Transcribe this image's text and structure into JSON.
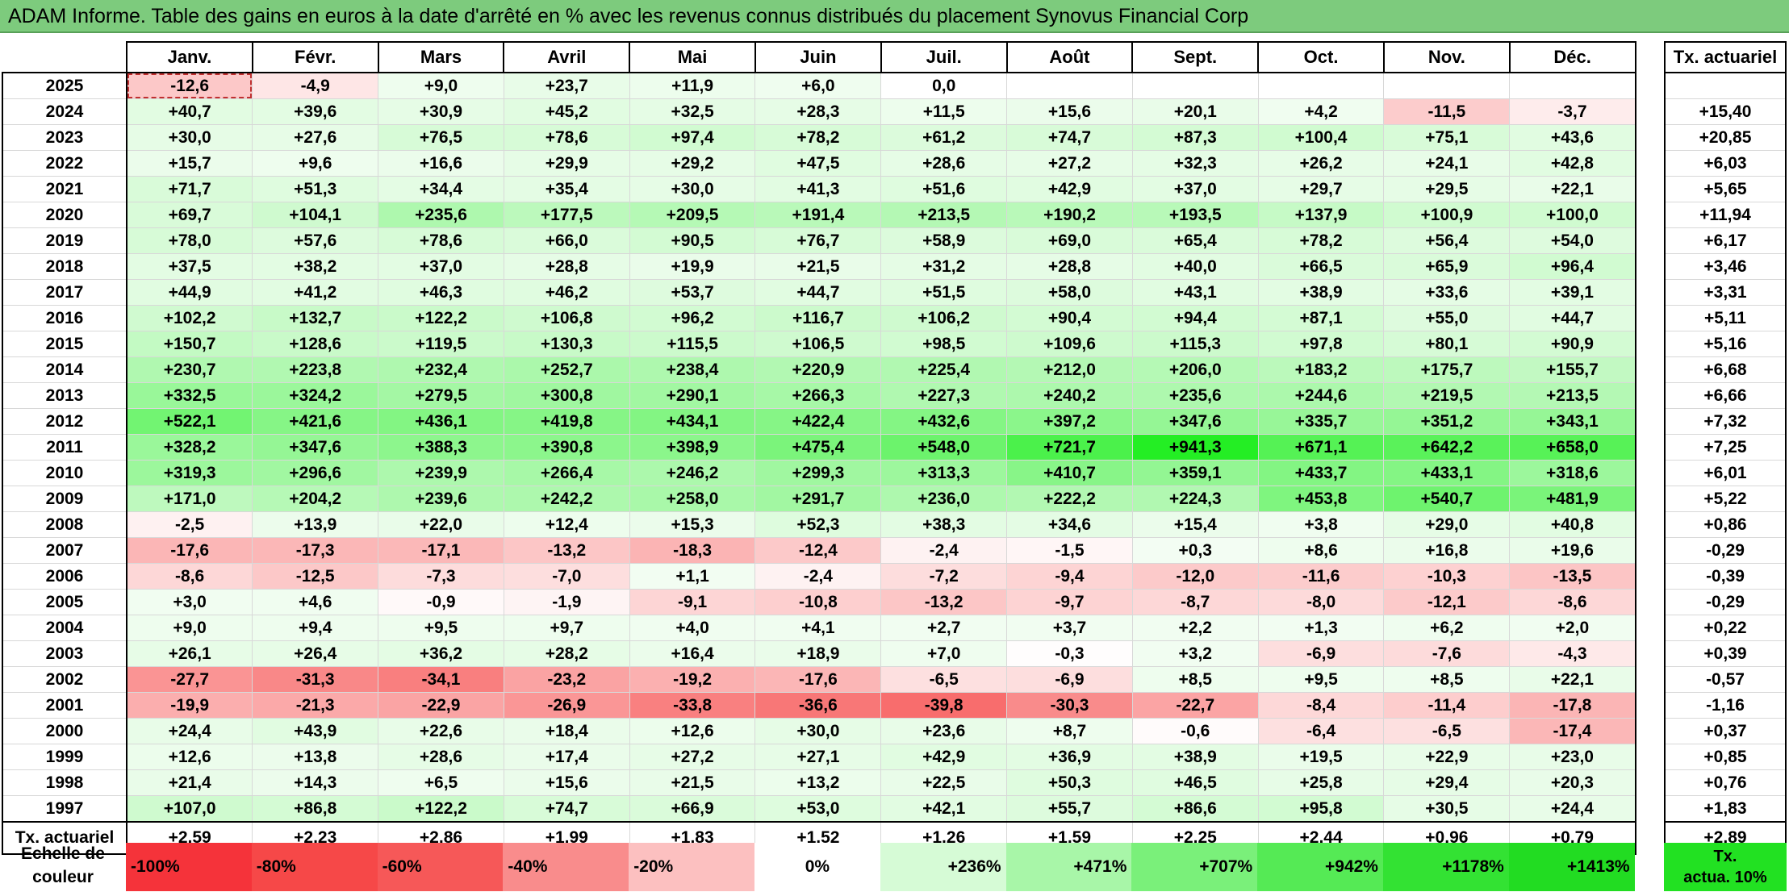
{
  "title": "ADAM Informe. Table des gains en euros à la date d'arrêté en % avec les revenus connus distribués du placement Synovus Financial Corp",
  "months": [
    "Janv.",
    "Févr.",
    "Mars",
    "Avril",
    "Mai",
    "Juin",
    "Juil.",
    "Août",
    "Sept.",
    "Oct.",
    "Nov.",
    "Déc."
  ],
  "rate_header": "Tx. actuariel",
  "rows": [
    {
      "year": "2025",
      "values": [
        "-12,6",
        "-4,9",
        "+9,0",
        "+23,7",
        "+11,9",
        "+6,0",
        "0,0",
        "",
        "",
        "",
        "",
        ""
      ],
      "rate": ""
    },
    {
      "year": "2024",
      "values": [
        "+40,7",
        "+39,6",
        "+30,9",
        "+45,2",
        "+32,5",
        "+28,3",
        "+11,5",
        "+15,6",
        "+20,1",
        "+4,2",
        "-11,5",
        "-3,7"
      ],
      "rate": "+15,40"
    },
    {
      "year": "2023",
      "values": [
        "+30,0",
        "+27,6",
        "+76,5",
        "+78,6",
        "+97,4",
        "+78,2",
        "+61,2",
        "+74,7",
        "+87,3",
        "+100,4",
        "+75,1",
        "+43,6"
      ],
      "rate": "+20,85"
    },
    {
      "year": "2022",
      "values": [
        "+15,7",
        "+9,6",
        "+16,6",
        "+29,9",
        "+29,2",
        "+47,5",
        "+28,6",
        "+27,2",
        "+32,3",
        "+26,2",
        "+24,1",
        "+42,8"
      ],
      "rate": "+6,03"
    },
    {
      "year": "2021",
      "values": [
        "+71,7",
        "+51,3",
        "+34,4",
        "+35,4",
        "+30,0",
        "+41,3",
        "+51,6",
        "+42,9",
        "+37,0",
        "+29,7",
        "+29,5",
        "+22,1"
      ],
      "rate": "+5,65"
    },
    {
      "year": "2020",
      "values": [
        "+69,7",
        "+104,1",
        "+235,6",
        "+177,5",
        "+209,5",
        "+191,4",
        "+213,5",
        "+190,2",
        "+193,5",
        "+137,9",
        "+100,9",
        "+100,0"
      ],
      "rate": "+11,94"
    },
    {
      "year": "2019",
      "values": [
        "+78,0",
        "+57,6",
        "+78,6",
        "+66,0",
        "+90,5",
        "+76,7",
        "+58,9",
        "+69,0",
        "+65,4",
        "+78,2",
        "+56,4",
        "+54,0"
      ],
      "rate": "+6,17"
    },
    {
      "year": "2018",
      "values": [
        "+37,5",
        "+38,2",
        "+37,0",
        "+28,8",
        "+19,9",
        "+21,5",
        "+31,2",
        "+28,8",
        "+40,0",
        "+66,5",
        "+65,9",
        "+96,4"
      ],
      "rate": "+3,46"
    },
    {
      "year": "2017",
      "values": [
        "+44,9",
        "+41,2",
        "+46,3",
        "+46,2",
        "+53,7",
        "+44,7",
        "+51,5",
        "+58,0",
        "+43,1",
        "+38,9",
        "+33,6",
        "+39,1"
      ],
      "rate": "+3,31"
    },
    {
      "year": "2016",
      "values": [
        "+102,2",
        "+132,7",
        "+122,2",
        "+106,8",
        "+96,2",
        "+116,7",
        "+106,2",
        "+90,4",
        "+94,4",
        "+87,1",
        "+55,0",
        "+44,7"
      ],
      "rate": "+5,11"
    },
    {
      "year": "2015",
      "values": [
        "+150,7",
        "+128,6",
        "+119,5",
        "+130,3",
        "+115,5",
        "+106,5",
        "+98,5",
        "+109,6",
        "+115,3",
        "+97,8",
        "+80,1",
        "+90,9"
      ],
      "rate": "+5,16"
    },
    {
      "year": "2014",
      "values": [
        "+230,7",
        "+223,8",
        "+232,4",
        "+252,7",
        "+238,4",
        "+220,9",
        "+225,4",
        "+212,0",
        "+206,0",
        "+183,2",
        "+175,7",
        "+155,7"
      ],
      "rate": "+6,68"
    },
    {
      "year": "2013",
      "values": [
        "+332,5",
        "+324,2",
        "+279,5",
        "+300,8",
        "+290,1",
        "+266,3",
        "+227,3",
        "+240,2",
        "+235,6",
        "+244,6",
        "+219,5",
        "+213,5"
      ],
      "rate": "+6,66"
    },
    {
      "year": "2012",
      "values": [
        "+522,1",
        "+421,6",
        "+436,1",
        "+419,8",
        "+434,1",
        "+422,4",
        "+432,6",
        "+397,2",
        "+347,6",
        "+335,7",
        "+351,2",
        "+343,1"
      ],
      "rate": "+7,32"
    },
    {
      "year": "2011",
      "values": [
        "+328,2",
        "+347,6",
        "+388,3",
        "+390,8",
        "+398,9",
        "+475,4",
        "+548,0",
        "+721,7",
        "+941,3",
        "+671,1",
        "+642,2",
        "+658,0"
      ],
      "rate": "+7,25"
    },
    {
      "year": "2010",
      "values": [
        "+319,3",
        "+296,6",
        "+239,9",
        "+266,4",
        "+246,2",
        "+299,3",
        "+313,3",
        "+410,7",
        "+359,1",
        "+433,7",
        "+433,1",
        "+318,6"
      ],
      "rate": "+6,01"
    },
    {
      "year": "2009",
      "values": [
        "+171,0",
        "+204,2",
        "+239,6",
        "+242,2",
        "+258,0",
        "+291,7",
        "+236,0",
        "+222,2",
        "+224,3",
        "+453,8",
        "+540,7",
        "+481,9"
      ],
      "rate": "+5,22"
    },
    {
      "year": "2008",
      "values": [
        "-2,5",
        "+13,9",
        "+22,0",
        "+12,4",
        "+15,3",
        "+52,3",
        "+38,3",
        "+34,6",
        "+15,4",
        "+3,8",
        "+29,0",
        "+40,8"
      ],
      "rate": "+0,86"
    },
    {
      "year": "2007",
      "values": [
        "-17,6",
        "-17,3",
        "-17,1",
        "-13,2",
        "-18,3",
        "-12,4",
        "-2,4",
        "-1,5",
        "+0,3",
        "+8,6",
        "+16,8",
        "+19,6"
      ],
      "rate": "-0,29"
    },
    {
      "year": "2006",
      "values": [
        "-8,6",
        "-12,5",
        "-7,3",
        "-7,0",
        "+1,1",
        "-2,4",
        "-7,2",
        "-9,4",
        "-12,0",
        "-11,6",
        "-10,3",
        "-13,5"
      ],
      "rate": "-0,39"
    },
    {
      "year": "2005",
      "values": [
        "+3,0",
        "+4,6",
        "-0,9",
        "-1,9",
        "-9,1",
        "-10,8",
        "-13,2",
        "-9,7",
        "-8,7",
        "-8,0",
        "-12,1",
        "-8,6"
      ],
      "rate": "-0,29"
    },
    {
      "year": "2004",
      "values": [
        "+9,0",
        "+9,4",
        "+9,5",
        "+9,7",
        "+4,0",
        "+4,1",
        "+2,7",
        "+3,7",
        "+2,2",
        "+1,3",
        "+6,2",
        "+2,0"
      ],
      "rate": "+0,22"
    },
    {
      "year": "2003",
      "values": [
        "+26,1",
        "+26,4",
        "+36,2",
        "+28,2",
        "+16,4",
        "+18,9",
        "+7,0",
        "-0,3",
        "+3,2",
        "-6,9",
        "-7,6",
        "-4,3"
      ],
      "rate": "+0,39"
    },
    {
      "year": "2002",
      "values": [
        "-27,7",
        "-31,3",
        "-34,1",
        "-23,2",
        "-19,2",
        "-17,6",
        "-6,5",
        "-6,9",
        "+8,5",
        "+9,5",
        "+8,5",
        "+22,1"
      ],
      "rate": "-0,57"
    },
    {
      "year": "2001",
      "values": [
        "-19,9",
        "-21,3",
        "-22,9",
        "-26,9",
        "-33,8",
        "-36,6",
        "-39,8",
        "-30,3",
        "-22,7",
        "-8,4",
        "-11,4",
        "-17,8"
      ],
      "rate": "-1,16"
    },
    {
      "year": "2000",
      "values": [
        "+24,4",
        "+43,9",
        "+22,6",
        "+18,4",
        "+12,6",
        "+30,0",
        "+23,6",
        "+8,7",
        "-0,6",
        "-6,4",
        "-6,5",
        "-17,4"
      ],
      "rate": "+0,37"
    },
    {
      "year": "1999",
      "values": [
        "+12,6",
        "+13,8",
        "+28,6",
        "+17,4",
        "+27,2",
        "+27,1",
        "+42,9",
        "+36,9",
        "+38,9",
        "+19,5",
        "+22,9",
        "+23,0"
      ],
      "rate": "+0,85"
    },
    {
      "year": "1998",
      "values": [
        "+21,4",
        "+14,3",
        "+6,5",
        "+15,6",
        "+21,5",
        "+13,2",
        "+22,5",
        "+50,3",
        "+46,5",
        "+25,8",
        "+29,4",
        "+20,3"
      ],
      "rate": "+0,76"
    },
    {
      "year": "1997",
      "values": [
        "+107,0",
        "+86,8",
        "+122,2",
        "+74,7",
        "+66,9",
        "+53,0",
        "+42,1",
        "+55,7",
        "+86,6",
        "+95,8",
        "+30,5",
        "+24,4"
      ],
      "rate": "+1,83"
    }
  ],
  "summary": {
    "label": "Tx. actuariel",
    "values": [
      "+2,59",
      "+2,23",
      "+2,86",
      "+1,99",
      "+1,83",
      "+1,52",
      "+1,26",
      "+1,59",
      "+2,25",
      "+2,44",
      "+0,96",
      "+0,79"
    ],
    "rate": "+2,89"
  },
  "scale": {
    "label_line1": "Echelle de",
    "label_line2": "couleur",
    "items": [
      {
        "label": "-100%",
        "color": "#f5333a"
      },
      {
        "label": "-80%",
        "color": "#f64848"
      },
      {
        "label": "-60%",
        "color": "#f65858"
      },
      {
        "label": "-40%",
        "color": "#f98c8c"
      },
      {
        "label": "-20%",
        "color": "#fcc0c0"
      },
      {
        "label": "0%",
        "color": "#ffffff"
      },
      {
        "label": "+236%",
        "color": "#d6fbd6"
      },
      {
        "label": "+471%",
        "color": "#a8f6a8"
      },
      {
        "label": "+707%",
        "color": "#7af07a"
      },
      {
        "label": "+942%",
        "color": "#55ea55"
      },
      {
        "label": "+1178%",
        "color": "#33e233"
      },
      {
        "label": "+1413%",
        "color": "#22dc22"
      }
    ],
    "rate_line1": "Tx.",
    "rate_line2": "actua. 10%",
    "rate_color": "#22e122"
  }
}
